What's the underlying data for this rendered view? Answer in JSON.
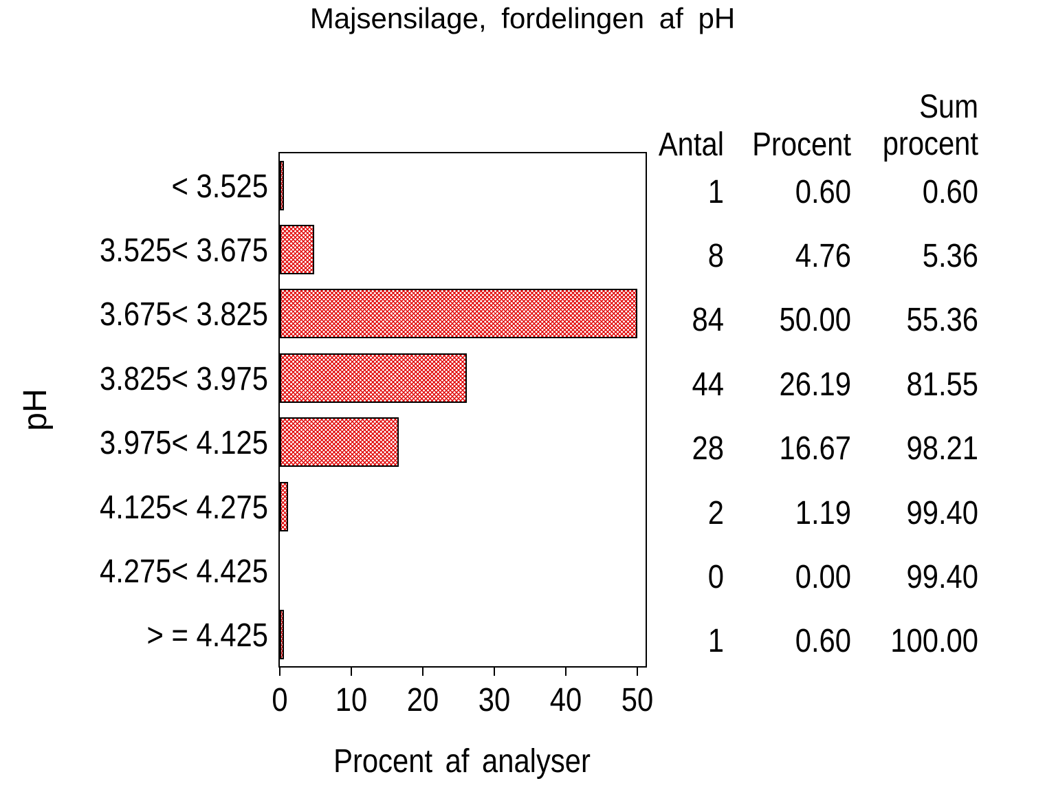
{
  "title": "Majsensilage, fordelingen af pH",
  "x_axis_label": "Procent af analyser",
  "y_axis_label": "pH",
  "table": {
    "header_antal": "Antal",
    "header_procent": "Procent",
    "header_sum_line1": "Sum",
    "header_sum_line2": "procent"
  },
  "colors": {
    "hatch_red": "#e00000",
    "axis_black": "#000000",
    "background": "#ffffff"
  },
  "chart_data": {
    "type": "bar",
    "orientation": "horizontal",
    "title": "Majsensilage, fordelingen af pH",
    "xlabel": "Procent af analyser",
    "ylabel": "pH",
    "xlim": [
      0,
      50
    ],
    "x_ticks": [
      "0",
      "10",
      "20",
      "30",
      "40",
      "50"
    ],
    "grid": false,
    "legend": "none",
    "bar_fill": "red diagonal crosshatch, black outline",
    "categories": [
      "< 3.525",
      "3.525< 3.675",
      "3.675< 3.825",
      "3.825< 3.975",
      "3.975< 4.125",
      "4.125< 4.275",
      "4.275< 4.425",
      "> = 4.425"
    ],
    "values": [
      0.6,
      4.76,
      50.0,
      26.19,
      16.67,
      1.19,
      0.0,
      0.6
    ],
    "series": [
      {
        "name": "Antal",
        "values": [
          1,
          8,
          84,
          44,
          28,
          2,
          0,
          1
        ]
      },
      {
        "name": "Procent",
        "values": [
          0.6,
          4.76,
          50.0,
          26.19,
          16.67,
          1.19,
          0.0,
          0.6
        ]
      },
      {
        "name": "Sum procent",
        "values": [
          0.6,
          5.36,
          55.36,
          81.55,
          98.21,
          99.4,
          99.4,
          100.0
        ]
      }
    ]
  },
  "table_rows": [
    {
      "antal": "1",
      "procent": "0.60",
      "sum": "0.60"
    },
    {
      "antal": "8",
      "procent": "4.76",
      "sum": "5.36"
    },
    {
      "antal": "84",
      "procent": "50.00",
      "sum": "55.36"
    },
    {
      "antal": "44",
      "procent": "26.19",
      "sum": "81.55"
    },
    {
      "antal": "28",
      "procent": "16.67",
      "sum": "98.21"
    },
    {
      "antal": "2",
      "procent": "1.19",
      "sum": "99.40"
    },
    {
      "antal": "0",
      "procent": "0.00",
      "sum": "99.40"
    },
    {
      "antal": "1",
      "procent": "0.60",
      "sum": "100.00"
    }
  ]
}
